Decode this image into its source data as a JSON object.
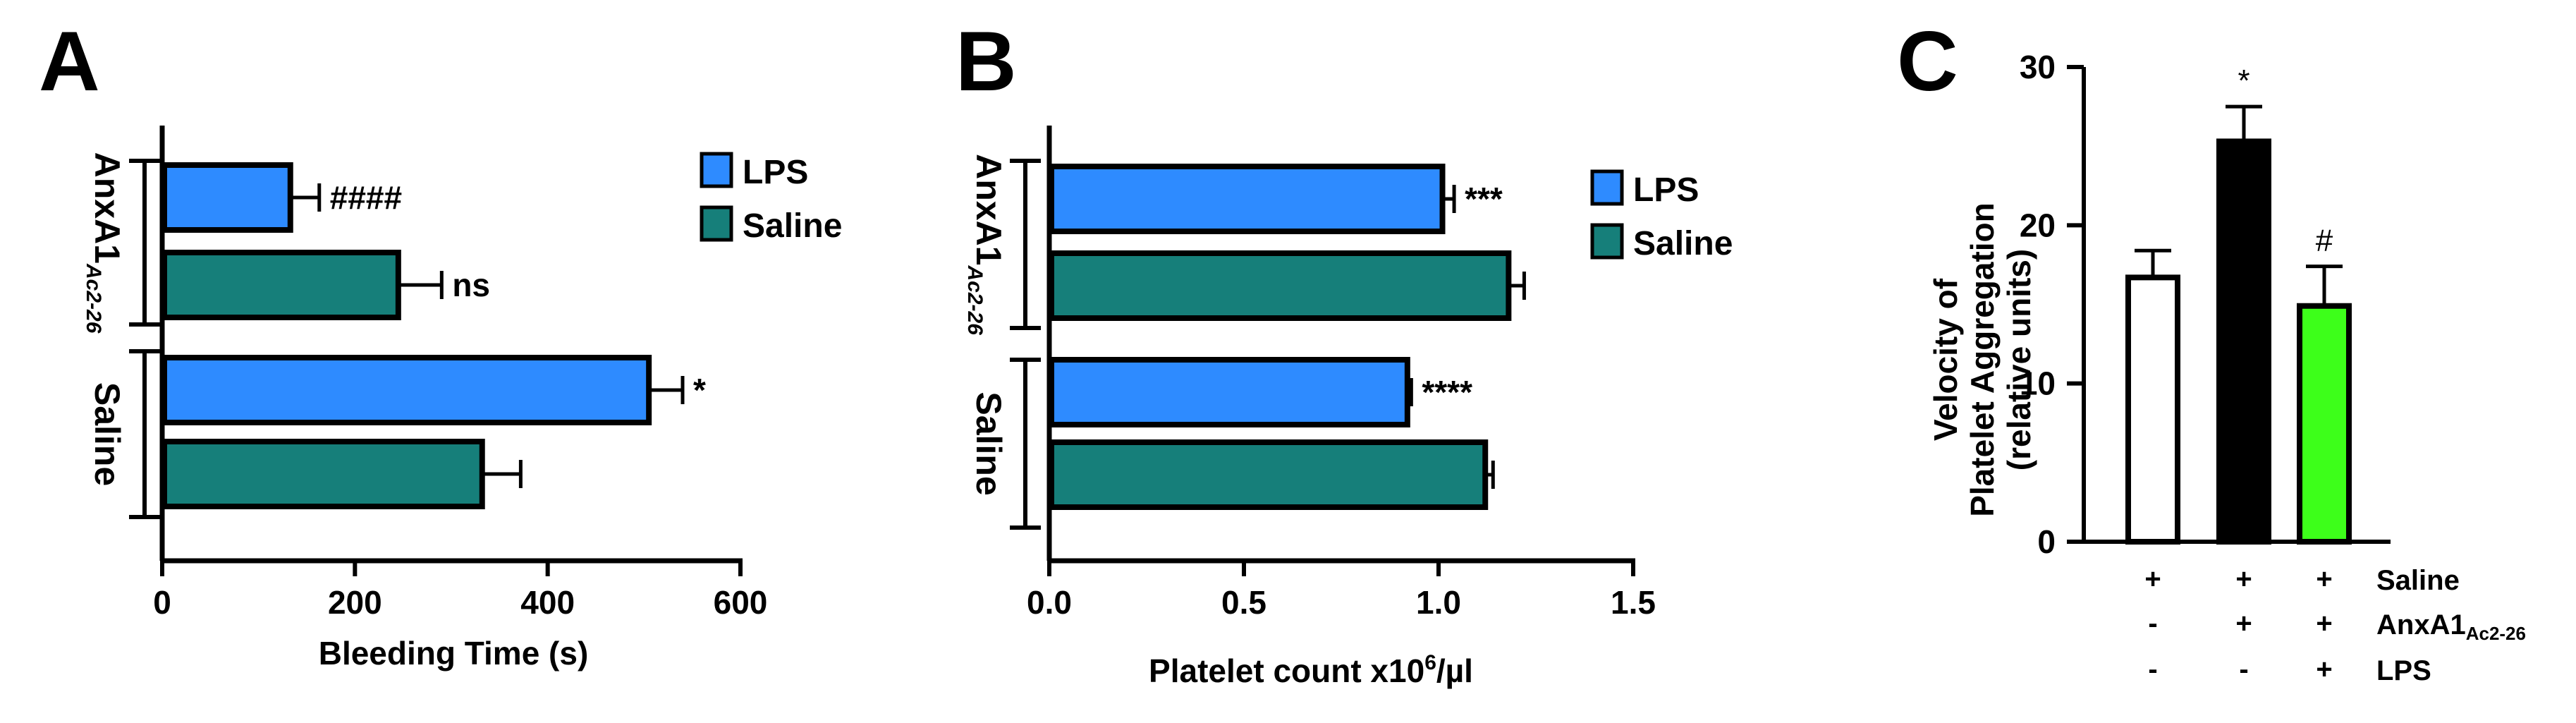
{
  "chart_data": [
    {
      "panel": "A",
      "type": "bar",
      "orientation": "horizontal",
      "xlabel": "Bleeding Time (s)",
      "xlim": [
        0,
        600
      ],
      "xticks": [
        "0",
        "200",
        "400",
        "600"
      ],
      "groups": [
        {
          "name": "AnxA1",
          "subscript": "Ac2-26"
        },
        {
          "name": "Saline",
          "subscript": ""
        }
      ],
      "legend": [
        "LPS",
        "Saline"
      ],
      "series": [
        {
          "name": "LPS",
          "color": "#2e8bff",
          "values": [
            133,
            505
          ],
          "errors": [
            30,
            35
          ]
        },
        {
          "name": "Saline",
          "color": "#167f7a",
          "values": [
            245,
            332
          ],
          "errors": [
            45,
            40
          ]
        }
      ],
      "annotations": [
        [
          "####",
          "*"
        ],
        [
          "ns",
          ""
        ]
      ]
    },
    {
      "panel": "B",
      "type": "bar",
      "orientation": "horizontal",
      "xlabel": "Platelet count x10",
      "xlabel_sup": "6",
      "xlabel_tail": "/µl",
      "xlim": [
        0,
        1.5
      ],
      "xticks": [
        "0.0",
        "0.5",
        "1.0",
        "1.5"
      ],
      "groups": [
        {
          "name": "AnxA1",
          "subscript": "Ac2-26"
        },
        {
          "name": "Saline",
          "subscript": ""
        }
      ],
      "legend": [
        "LPS",
        "Saline"
      ],
      "series": [
        {
          "name": "LPS",
          "color": "#2e8bff",
          "values": [
            1.01,
            0.92
          ],
          "errors": [
            0.03,
            0.01
          ]
        },
        {
          "name": "Saline",
          "color": "#167f7a",
          "values": [
            1.18,
            1.12
          ],
          "errors": [
            0.04,
            0.02
          ]
        }
      ],
      "annotations": [
        [
          "***",
          "****"
        ],
        [
          "",
          ""
        ]
      ]
    },
    {
      "panel": "C",
      "type": "bar",
      "orientation": "vertical",
      "ylabel_line1": "Velocity of",
      "ylabel_line2": "Platelet Aggregation",
      "ylabel_line3": "(relative units)",
      "ylim": [
        0,
        30
      ],
      "yticks": [
        "0",
        "10",
        "20",
        "30"
      ],
      "bars": [
        {
          "value": 16.7,
          "error": 1.7,
          "color": "#ffffff",
          "annotation": ""
        },
        {
          "value": 25.3,
          "error": 2.2,
          "color": "#000000",
          "annotation": "*"
        },
        {
          "value": 14.9,
          "error": 2.5,
          "color": "#3dff1a",
          "annotation": "#"
        }
      ],
      "conditions": [
        {
          "name": "Saline",
          "subscript": "",
          "signs": [
            "+",
            "+",
            "+"
          ]
        },
        {
          "name": "AnxA1",
          "subscript": "Ac2-26",
          "signs": [
            "-",
            "+",
            "+"
          ]
        },
        {
          "name": "LPS",
          "subscript": "",
          "signs": [
            "-",
            "-",
            "+"
          ]
        }
      ]
    }
  ]
}
